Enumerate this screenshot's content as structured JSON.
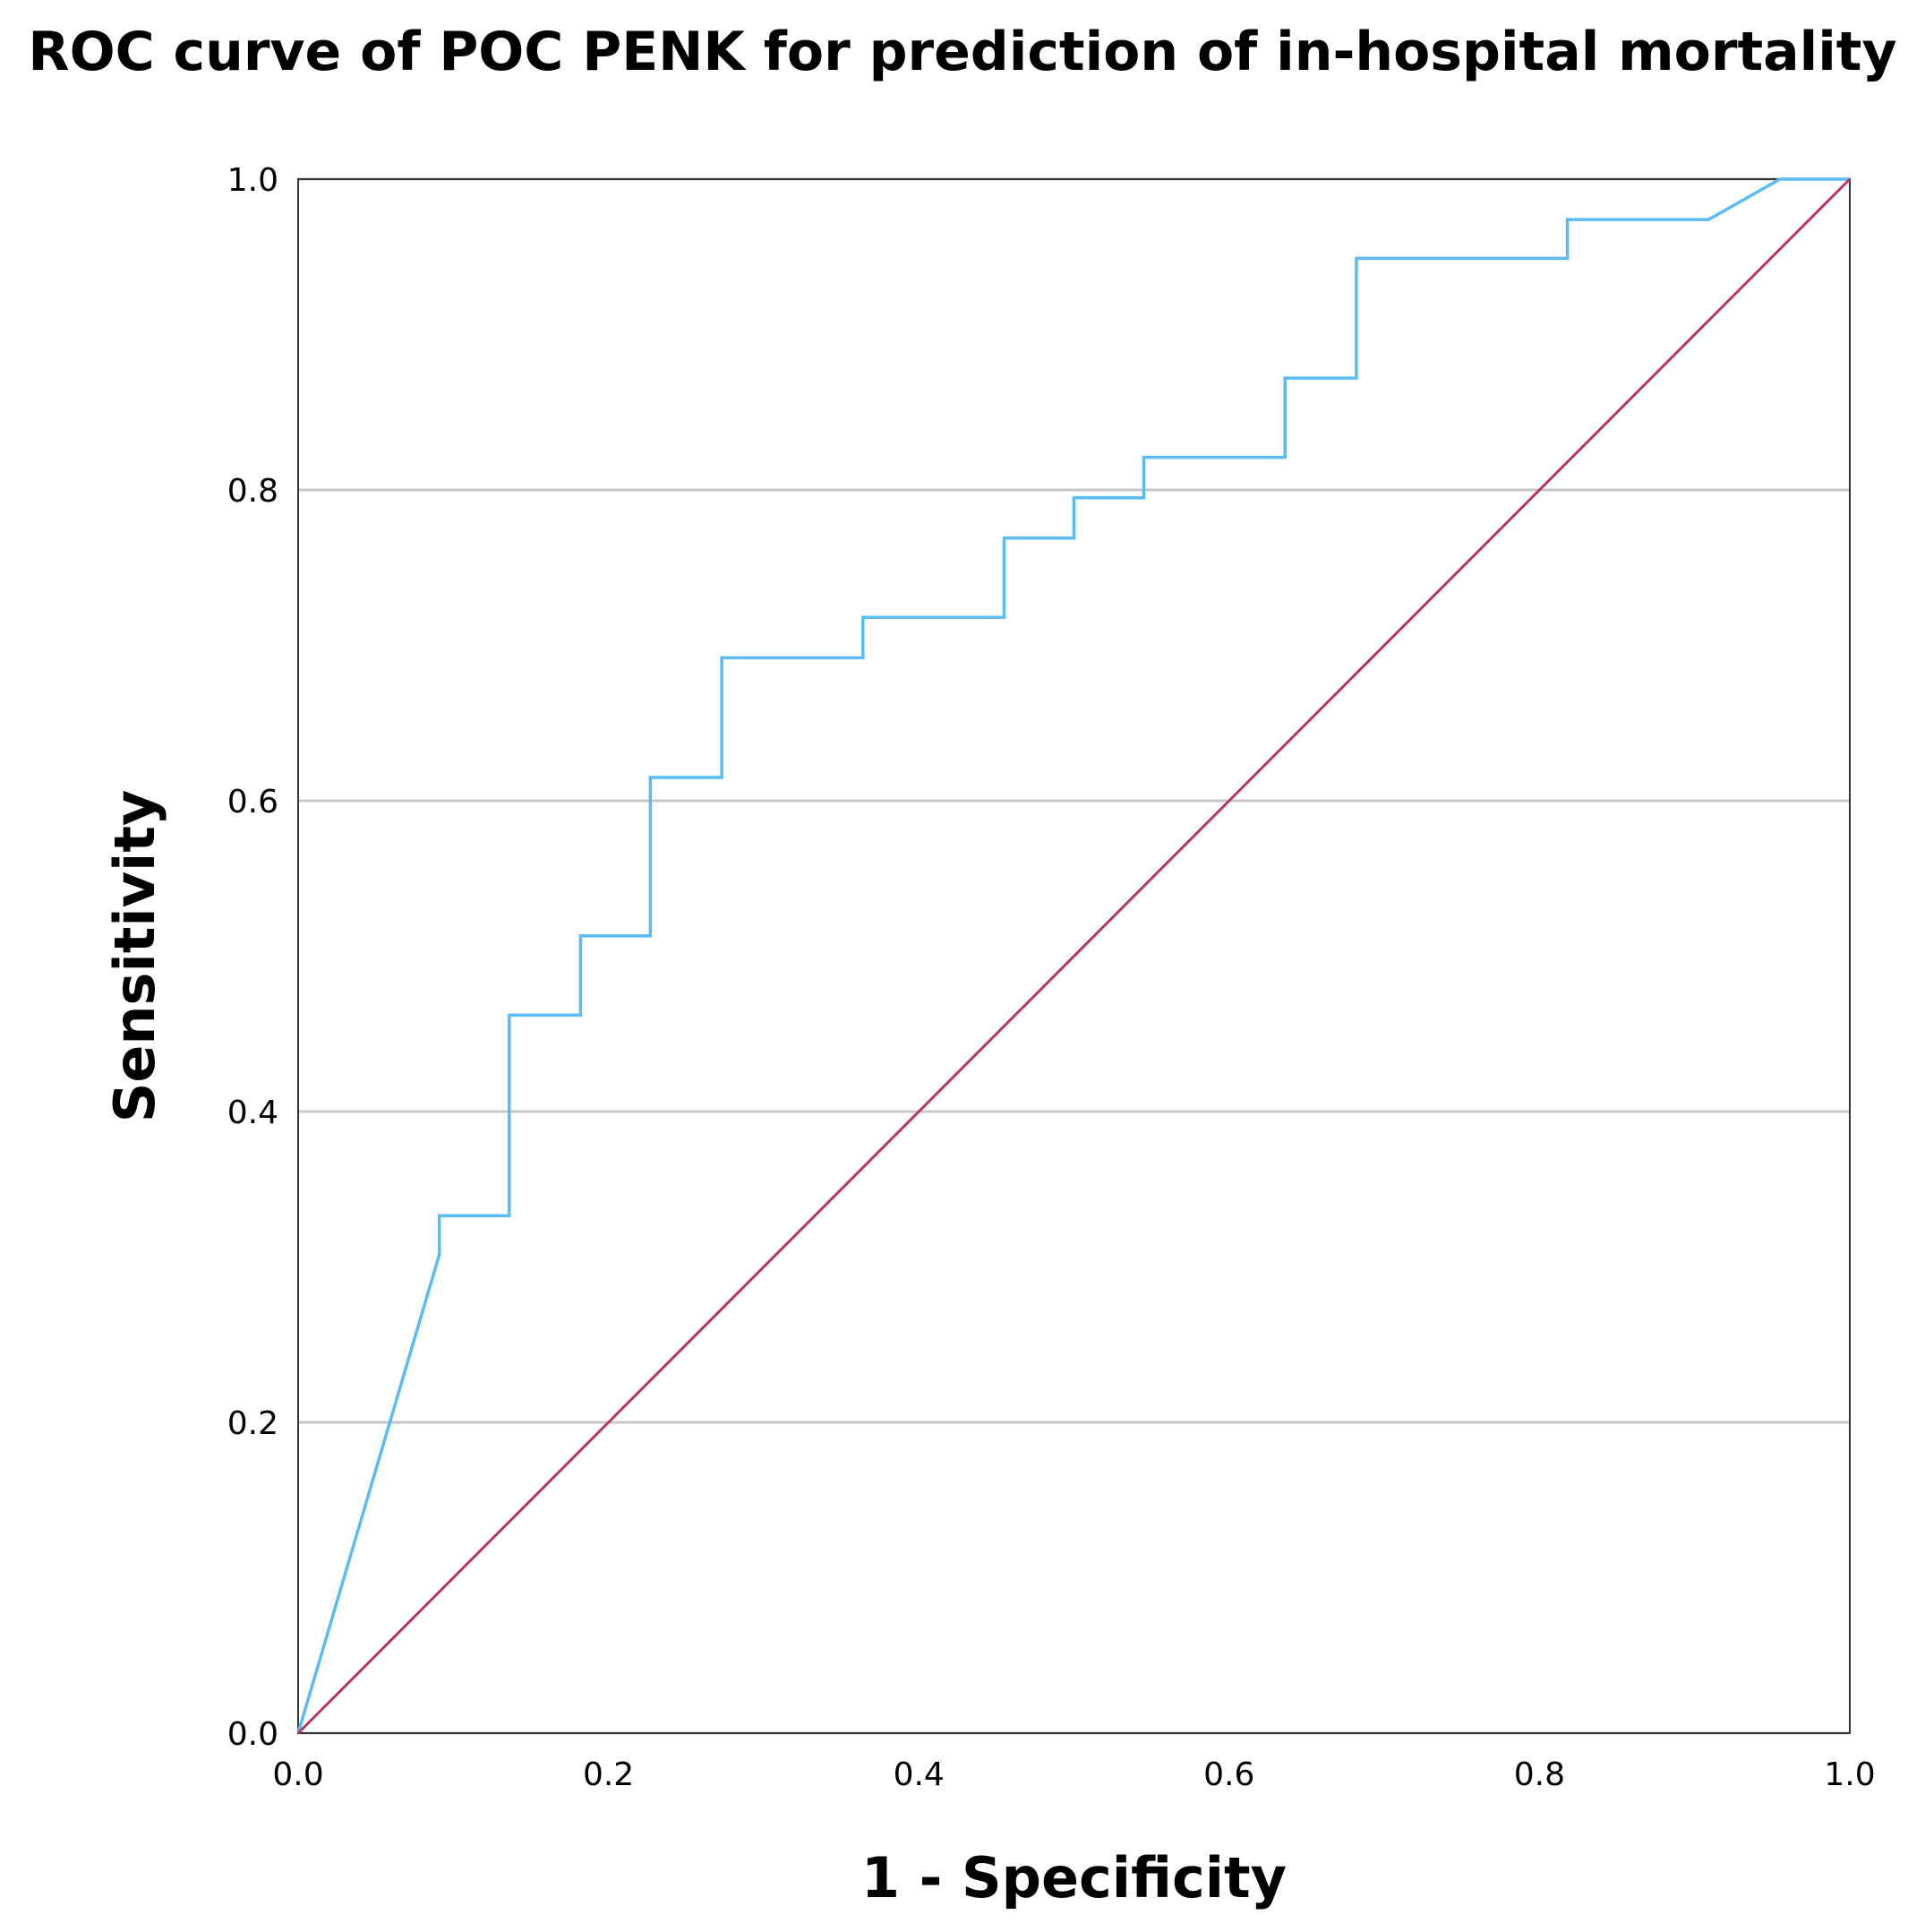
{
  "chart_data": {
    "type": "line",
    "title": "ROC curve of POC PENK for prediction of in-hospital mortality",
    "xlabel": "1 - Specificity",
    "ylabel": "Sensitivity",
    "xlim": [
      0,
      1
    ],
    "ylim": [
      0,
      1
    ],
    "x_ticks": [
      "0.0",
      "0.2",
      "0.4",
      "0.6",
      "0.8",
      "1.0"
    ],
    "y_ticks": [
      "0.0",
      "0.2",
      "0.4",
      "0.6",
      "0.8",
      "1.0"
    ],
    "grid": "horizontal",
    "legend": "none",
    "series": [
      {
        "color": "#5bbcf5",
        "x": [
          0.0,
          0.091,
          0.091,
          0.136,
          0.136,
          0.182,
          0.182,
          0.227,
          0.227,
          0.273,
          0.273,
          0.364,
          0.364,
          0.455,
          0.455,
          0.5,
          0.5,
          0.545,
          0.545,
          0.636,
          0.636,
          0.682,
          0.682,
          0.818,
          0.818,
          0.909,
          0.955,
          1.0
        ],
        "y": [
          0.0,
          0.308,
          0.333,
          0.333,
          0.462,
          0.462,
          0.513,
          0.513,
          0.615,
          0.615,
          0.692,
          0.692,
          0.718,
          0.718,
          0.769,
          0.769,
          0.795,
          0.795,
          0.821,
          0.821,
          0.872,
          0.872,
          0.949,
          0.949,
          0.974,
          0.974,
          1.0,
          1.0
        ]
      },
      {
        "color": "#b5375f",
        "x": [
          0,
          1
        ],
        "y": [
          0,
          1
        ]
      }
    ]
  }
}
